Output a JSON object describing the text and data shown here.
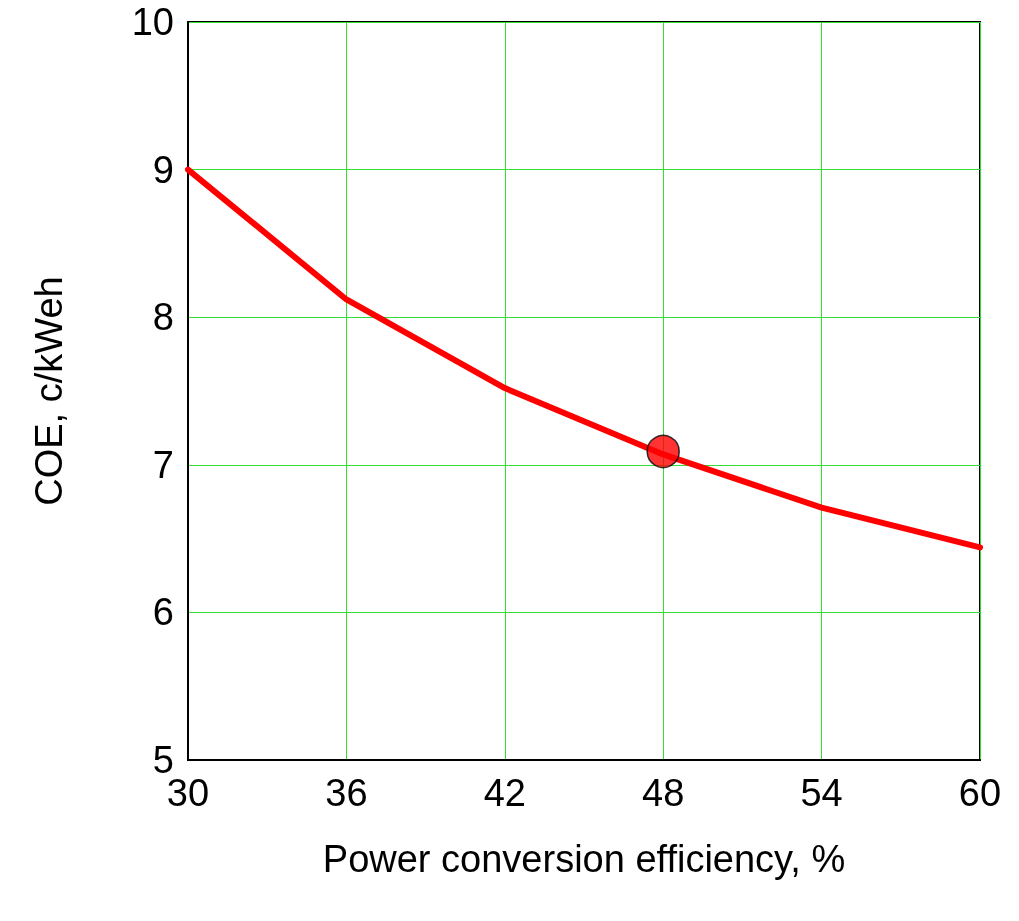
{
  "chart_data": {
    "type": "line",
    "xlabel": "Power conversion efficiency, %",
    "ylabel": "COE, c/kWeh",
    "x": [
      30,
      36,
      42,
      48,
      54,
      60
    ],
    "series": [
      {
        "color": "#ff0000",
        "marker": "none",
        "line_style": "solid",
        "values": [
          9.0,
          8.12,
          7.52,
          7.07,
          6.71,
          6.44
        ]
      },
      {
        "type": "scatter",
        "color": "#ff0000",
        "marker": "circle",
        "x": [
          48
        ],
        "values": [
          7.09
        ]
      }
    ],
    "xlim": [
      30,
      60
    ],
    "xticks": [
      30,
      36,
      42,
      48,
      54,
      60
    ],
    "ylim": [
      5,
      10
    ],
    "yticks": [
      5,
      6,
      7,
      8,
      9,
      10
    ],
    "grid": true
  }
}
